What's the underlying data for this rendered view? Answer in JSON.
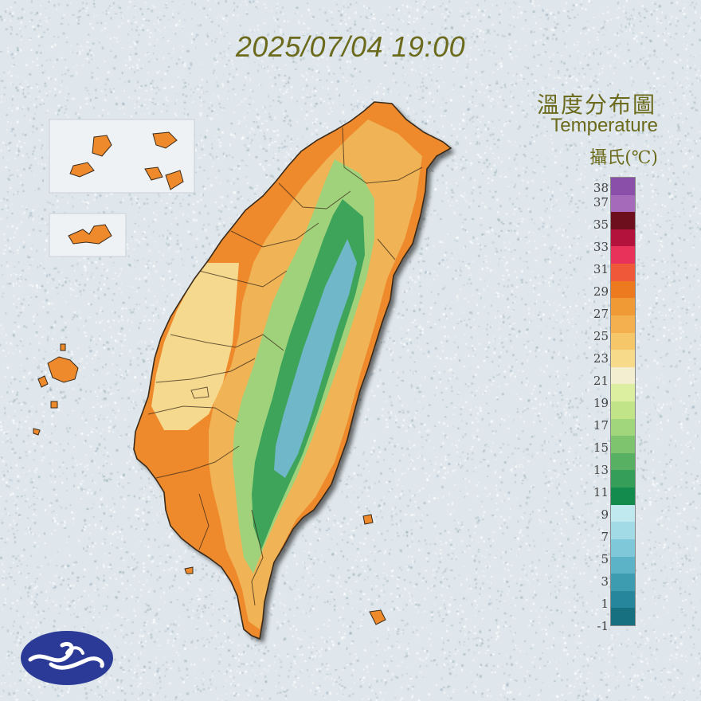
{
  "timestamp": "2025/07/04 19:00",
  "title": {
    "zh": "溫度分布圖",
    "en": "Temperature",
    "unit": "攝氏(℃)"
  },
  "legend": {
    "labels": [
      "38",
      "37",
      "35",
      "33",
      "31",
      "29",
      "27",
      "25",
      "23",
      "21",
      "19",
      "17",
      "15",
      "13",
      "11",
      "9",
      "7",
      "5",
      "3",
      "1",
      "-1"
    ],
    "bands": [
      {
        "color": "#8a4fa8"
      },
      {
        "color": "#a56ab9"
      },
      {
        "color": "#6e0f1e"
      },
      {
        "color": "#b3123d"
      },
      {
        "color": "#e8325a"
      },
      {
        "color": "#f0583a"
      },
      {
        "color": "#ee7a1f"
      },
      {
        "color": "#f09a36"
      },
      {
        "color": "#f4b04f"
      },
      {
        "color": "#f6c768"
      },
      {
        "color": "#f8db8a"
      },
      {
        "color": "#f3eecf"
      },
      {
        "color": "#dceea0"
      },
      {
        "color": "#c2e488"
      },
      {
        "color": "#a2d67d"
      },
      {
        "color": "#7ec46f"
      },
      {
        "color": "#58b163"
      },
      {
        "color": "#359e59"
      },
      {
        "color": "#128b4c"
      },
      {
        "color": "#bfe9ef"
      },
      {
        "color": "#a2dbe6"
      },
      {
        "color": "#7fc8d9"
      },
      {
        "color": "#5cb2c6"
      },
      {
        "color": "#3d9cb0"
      },
      {
        "color": "#25869c"
      },
      {
        "color": "#16707f"
      }
    ]
  },
  "map": {
    "region": "Taiwan",
    "colors": {
      "coast": "#ee8a2c",
      "plain": "#f5d98e",
      "hill": "#f0b456",
      "lowmount": "#9fd27a",
      "mount": "#3ea45a",
      "peak": "#6fb7c9",
      "outline": "#3a2a1a",
      "shadow": "#7d8791"
    }
  },
  "logo": {
    "name": "cwa-logo",
    "color": "#2b3a97"
  }
}
